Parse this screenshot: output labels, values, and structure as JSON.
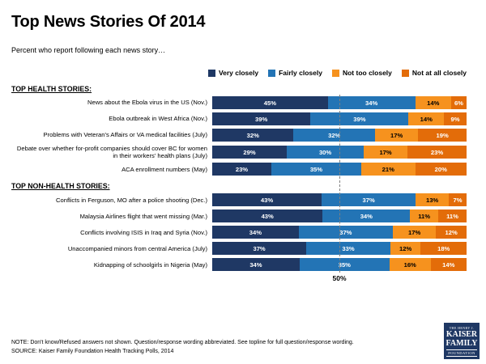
{
  "title": "Top News Stories Of 2014",
  "subtitle": "Percent who report following each news story…",
  "legend": {
    "items": [
      {
        "label": "Very closely",
        "color": "#1F3864",
        "text_color": "#FFFFFF"
      },
      {
        "label": "Fairly closely",
        "color": "#2374B5",
        "text_color": "#FFFFFF"
      },
      {
        "label": "Not too closely",
        "color": "#F6921E",
        "text_color": "#000000"
      },
      {
        "label": "Not at all closely",
        "color": "#E36C09",
        "text_color": "#FFFFFF"
      }
    ]
  },
  "chart_data": {
    "type": "bar",
    "stacked": true,
    "orientation": "horizontal",
    "title": "Top News Stories Of 2014",
    "xlabel": "",
    "ylabel": "",
    "xlim": [
      0,
      100
    ],
    "series_names": [
      "Very closely",
      "Fairly closely",
      "Not too closely",
      "Not at all closely"
    ],
    "reference_line": {
      "x": 50,
      "label": "50%"
    },
    "groups": [
      {
        "header": "TOP HEALTH STORIES:",
        "rows": [
          {
            "label": "News about the Ebola virus in the US (Nov.)",
            "values": [
              45,
              34,
              14,
              6
            ]
          },
          {
            "label": "Ebola outbreak in West Africa (Nov.)",
            "values": [
              39,
              39,
              14,
              9
            ]
          },
          {
            "label": "Problems with Veteran's Affairs or VA medical facilities (July)",
            "values": [
              32,
              32,
              17,
              19
            ]
          },
          {
            "label": "Debate over whether for-profit companies should cover BC for women in their workers' health plans (July)",
            "values": [
              29,
              30,
              17,
              23
            ]
          },
          {
            "label": "ACA enrollment numbers (May)",
            "values": [
              23,
              35,
              21,
              20
            ]
          }
        ]
      },
      {
        "header": "TOP NON-HEALTH STORIES:",
        "rows": [
          {
            "label": "Conflicts in Ferguson, MO after a police shooting (Dec.)",
            "values": [
              43,
              37,
              13,
              7
            ]
          },
          {
            "label": "Malaysia Airlines flight that went missing (Mar.)",
            "values": [
              43,
              34,
              11,
              11
            ]
          },
          {
            "label": "Conflicts involving ISIS in Iraq and Syria (Nov.)",
            "values": [
              34,
              37,
              17,
              12
            ]
          },
          {
            "label": "Unaccompanied minors from central America (July)",
            "values": [
              37,
              33,
              12,
              18
            ]
          },
          {
            "label": "Kidnapping of schoolgirls in Nigeria (May)",
            "values": [
              34,
              35,
              16,
              14
            ]
          }
        ]
      }
    ]
  },
  "notes": {
    "note": "NOTE: Don't know/Refused answers not shown. Question/response wording abbreviated. See topline for full question/response wording.",
    "source": "SOURCE: Kaiser Family Foundation Health Tracking Polls, 2014"
  },
  "logo": {
    "lines": [
      "THE HENRY J.",
      "KAISER",
      "FAMILY",
      "FOUNDATION"
    ]
  }
}
